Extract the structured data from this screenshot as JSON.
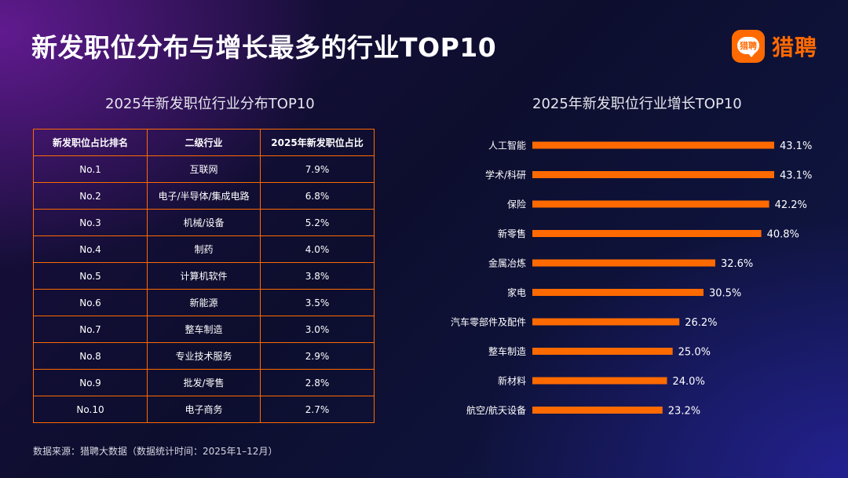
{
  "page": {
    "title": "新发职位分布与增长最多的行业TOP10",
    "brand": {
      "logo_text": "猎聘",
      "name": "猎聘",
      "color": "#ff6a00"
    },
    "footnote": "数据来源：猎聘大数据（数据统计时间：2025年1–12月）"
  },
  "table": {
    "title": "2025年新发职位行业分布TOP10",
    "headers": [
      "新发职位占比排名",
      "二级行业",
      "2025年新发职位占比"
    ],
    "rows": [
      [
        "No.1",
        "互联网",
        "7.9%"
      ],
      [
        "No.2",
        "电子/半导体/集成电路",
        "6.8%"
      ],
      [
        "No.3",
        "机械/设备",
        "5.2%"
      ],
      [
        "No.4",
        "制药",
        "4.0%"
      ],
      [
        "No.5",
        "计算机软件",
        "3.8%"
      ],
      [
        "No.6",
        "新能源",
        "3.5%"
      ],
      [
        "No.7",
        "整车制造",
        "3.0%"
      ],
      [
        "No.8",
        "专业技术服务",
        "2.9%"
      ],
      [
        "No.9",
        "批发/零售",
        "2.8%"
      ],
      [
        "No.10",
        "电子商务",
        "2.7%"
      ]
    ]
  },
  "chart_data": {
    "type": "bar",
    "orientation": "horizontal",
    "title": "2025年新发职位行业增长TOP10",
    "categories": [
      "人工智能",
      "学术/科研",
      "保险",
      "新零售",
      "金属冶炼",
      "家电",
      "汽车零部件及配件",
      "整车制造",
      "新材料",
      "航空/航天设备"
    ],
    "values": [
      43.1,
      43.1,
      42.2,
      40.8,
      32.6,
      30.5,
      26.2,
      25.0,
      24.0,
      23.2
    ],
    "labels": [
      "43.1%",
      "43.1%",
      "42.2%",
      "40.8%",
      "32.6%",
      "30.5%",
      "26.2%",
      "25.0%",
      "24.0%",
      "23.2%"
    ],
    "unit": "%",
    "xlim": [
      0,
      43.1
    ],
    "bar_color": "#ff6a00",
    "grid": false,
    "xlabel": "",
    "ylabel": ""
  }
}
